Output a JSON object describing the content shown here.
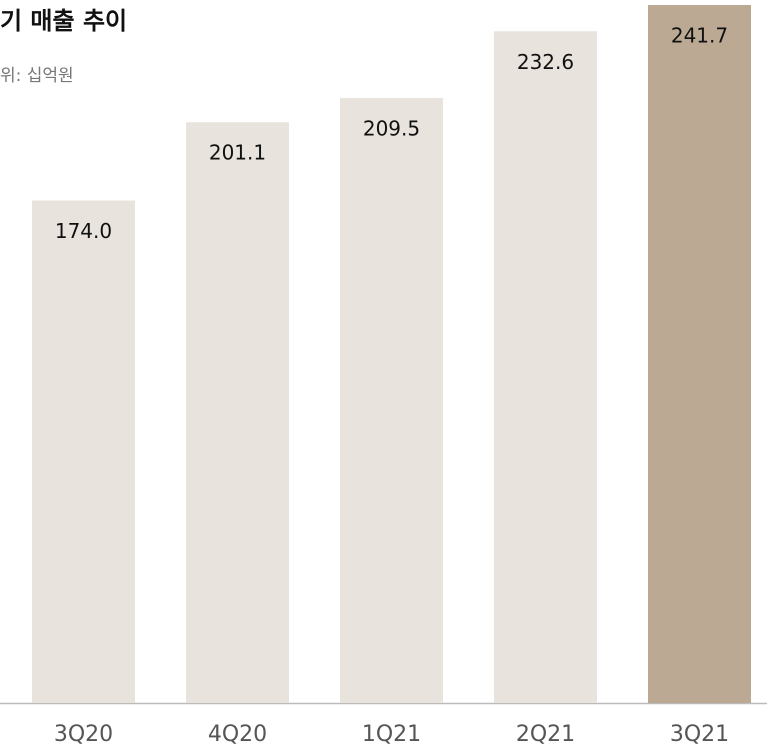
{
  "chart_data": {
    "type": "bar",
    "title": "기 매출 추이",
    "subtitle": "위: 십억원",
    "categories": [
      "3Q20",
      "4Q20",
      "1Q21",
      "2Q21",
      "3Q21"
    ],
    "values": [
      174.0,
      201.1,
      209.5,
      232.6,
      241.7
    ],
    "value_labels": [
      "174.0",
      "201.1",
      "209.5",
      "232.6",
      "241.7"
    ],
    "colors": [
      "#e8e3dc",
      "#e8e3dc",
      "#e8e3dc",
      "#e8e3dc",
      "#bba994"
    ]
  }
}
